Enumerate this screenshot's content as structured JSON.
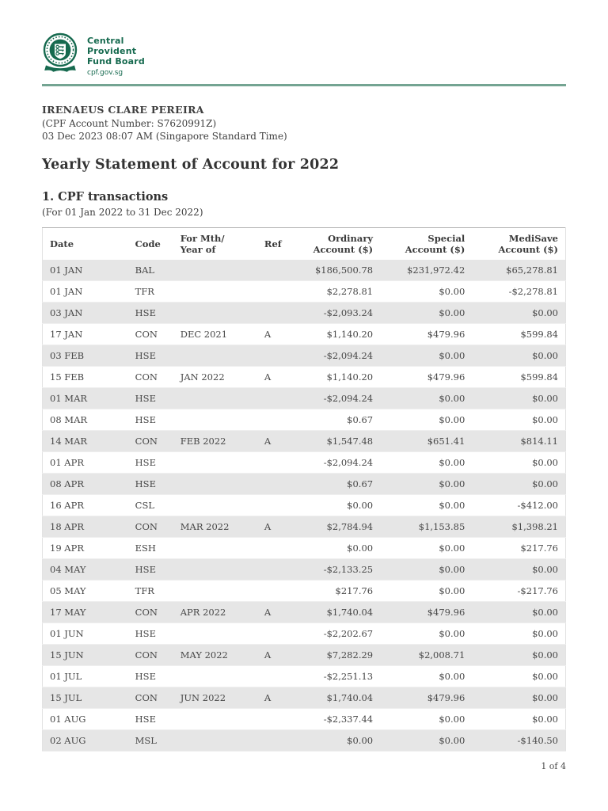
{
  "logo": {
    "icon": "cpf-seal-logo",
    "line1": "Central",
    "line2": "Provident",
    "line3": "Fund Board",
    "website": "cpf.gov.sg"
  },
  "colors": {
    "brand_green": "#166a4f",
    "rule_green": "#74a492",
    "row_stripe": "#e6e6e6"
  },
  "header": {
    "name": "IRENAEUS CLARE PEREIRA",
    "account_line": "(CPF Account Number: S7620991Z)",
    "datetime_line": "03 Dec 2023 08:07 AM (Singapore Standard Time)"
  },
  "title": "Yearly Statement of Account for 2022",
  "section": {
    "heading": "1. CPF transactions",
    "subheading": "(For 01 Jan 2022 to 31 Dec 2022)"
  },
  "table": {
    "columns": [
      {
        "key": "date",
        "lines": [
          "Date"
        ],
        "align": "left"
      },
      {
        "key": "code",
        "lines": [
          "Code"
        ],
        "align": "left"
      },
      {
        "key": "for_mth_year_of",
        "lines": [
          "For Mth/",
          "Year of"
        ],
        "align": "left"
      },
      {
        "key": "ref",
        "lines": [
          "Ref"
        ],
        "align": "left"
      },
      {
        "key": "ordinary_account",
        "lines": [
          "Ordinary",
          "Account ($)"
        ],
        "align": "right"
      },
      {
        "key": "special_account",
        "lines": [
          "Special",
          "Account ($)"
        ],
        "align": "right"
      },
      {
        "key": "medisave_account",
        "lines": [
          "MediSave",
          "Account ($)"
        ],
        "align": "right"
      }
    ],
    "rows": [
      [
        "01 JAN",
        "BAL",
        "",
        "",
        "$186,500.78",
        "$231,972.42",
        "$65,278.81"
      ],
      [
        "01 JAN",
        "TFR",
        "",
        "",
        "$2,278.81",
        "$0.00",
        "-$2,278.81"
      ],
      [
        "03 JAN",
        "HSE",
        "",
        "",
        "-$2,093.24",
        "$0.00",
        "$0.00"
      ],
      [
        "17 JAN",
        "CON",
        "DEC 2021",
        "A",
        "$1,140.20",
        "$479.96",
        "$599.84"
      ],
      [
        "03 FEB",
        "HSE",
        "",
        "",
        "-$2,094.24",
        "$0.00",
        "$0.00"
      ],
      [
        "15 FEB",
        "CON",
        "JAN 2022",
        "A",
        "$1,140.20",
        "$479.96",
        "$599.84"
      ],
      [
        "01 MAR",
        "HSE",
        "",
        "",
        "-$2,094.24",
        "$0.00",
        "$0.00"
      ],
      [
        "08 MAR",
        "HSE",
        "",
        "",
        "$0.67",
        "$0.00",
        "$0.00"
      ],
      [
        "14 MAR",
        "CON",
        "FEB 2022",
        "A",
        "$1,547.48",
        "$651.41",
        "$814.11"
      ],
      [
        "01 APR",
        "HSE",
        "",
        "",
        "-$2,094.24",
        "$0.00",
        "$0.00"
      ],
      [
        "08 APR",
        "HSE",
        "",
        "",
        "$0.67",
        "$0.00",
        "$0.00"
      ],
      [
        "16 APR",
        "CSL",
        "",
        "",
        "$0.00",
        "$0.00",
        "-$412.00"
      ],
      [
        "18 APR",
        "CON",
        "MAR 2022",
        "A",
        "$2,784.94",
        "$1,153.85",
        "$1,398.21"
      ],
      [
        "19 APR",
        "ESH",
        "",
        "",
        "$0.00",
        "$0.00",
        "$217.76"
      ],
      [
        "04 MAY",
        "HSE",
        "",
        "",
        "-$2,133.25",
        "$0.00",
        "$0.00"
      ],
      [
        "05 MAY",
        "TFR",
        "",
        "",
        "$217.76",
        "$0.00",
        "-$217.76"
      ],
      [
        "17 MAY",
        "CON",
        "APR 2022",
        "A",
        "$1,740.04",
        "$479.96",
        "$0.00"
      ],
      [
        "01 JUN",
        "HSE",
        "",
        "",
        "-$2,202.67",
        "$0.00",
        "$0.00"
      ],
      [
        "15 JUN",
        "CON",
        "MAY 2022",
        "A",
        "$7,282.29",
        "$2,008.71",
        "$0.00"
      ],
      [
        "01 JUL",
        "HSE",
        "",
        "",
        "-$2,251.13",
        "$0.00",
        "$0.00"
      ],
      [
        "15 JUL",
        "CON",
        "JUN 2022",
        "A",
        "$1,740.04",
        "$479.96",
        "$0.00"
      ],
      [
        "01 AUG",
        "HSE",
        "",
        "",
        "-$2,337.44",
        "$0.00",
        "$0.00"
      ],
      [
        "02 AUG",
        "MSL",
        "",
        "",
        "$0.00",
        "$0.00",
        "-$140.50"
      ]
    ]
  },
  "footer": {
    "page": "1 of 4"
  }
}
